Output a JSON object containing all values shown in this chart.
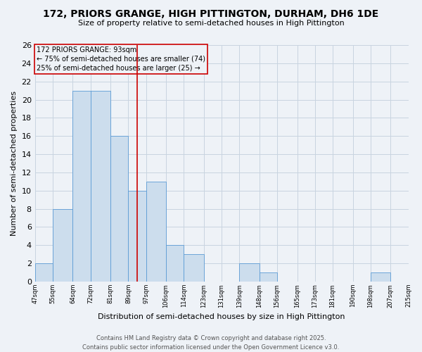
{
  "title": "172, PRIORS GRANGE, HIGH PITTINGTON, DURHAM, DH6 1DE",
  "subtitle": "Size of property relative to semi-detached houses in High Pittington",
  "xlabel": "Distribution of semi-detached houses by size in High Pittington",
  "ylabel": "Number of semi-detached properties",
  "bins": [
    47,
    55,
    64,
    72,
    81,
    89,
    97,
    106,
    114,
    123,
    131,
    139,
    148,
    156,
    165,
    173,
    181,
    190,
    198,
    207,
    215
  ],
  "counts": [
    2,
    8,
    21,
    21,
    16,
    10,
    11,
    4,
    3,
    0,
    0,
    2,
    1,
    0,
    0,
    0,
    0,
    0,
    1,
    0
  ],
  "bar_color": "#ccdded",
  "bar_edge_color": "#5b9bd5",
  "property_line_x": 93,
  "annotation_title": "172 PRIORS GRANGE: 93sqm",
  "annotation_line1": "← 75% of semi-detached houses are smaller (74)",
  "annotation_line2": "25% of semi-detached houses are larger (25) →",
  "annotation_box_color": "#cc0000",
  "ylim": [
    0,
    26
  ],
  "yticks": [
    0,
    2,
    4,
    6,
    8,
    10,
    12,
    14,
    16,
    18,
    20,
    22,
    24,
    26
  ],
  "tick_labels": [
    "47sqm",
    "55sqm",
    "64sqm",
    "72sqm",
    "81sqm",
    "89sqm",
    "97sqm",
    "106sqm",
    "114sqm",
    "123sqm",
    "131sqm",
    "139sqm",
    "148sqm",
    "156sqm",
    "165sqm",
    "173sqm",
    "181sqm",
    "190sqm",
    "198sqm",
    "207sqm",
    "215sqm"
  ],
  "footer1": "Contains HM Land Registry data © Crown copyright and database right 2025.",
  "footer2": "Contains public sector information licensed under the Open Government Licence v3.0.",
  "bg_color": "#eef2f7",
  "grid_color": "#c8d4e0",
  "title_fontsize": 10,
  "subtitle_fontsize": 8,
  "ylabel_fontsize": 8,
  "xlabel_fontsize": 8,
  "ytick_fontsize": 8,
  "xtick_fontsize": 6,
  "footer_fontsize": 6,
  "ann_fontsize": 7
}
